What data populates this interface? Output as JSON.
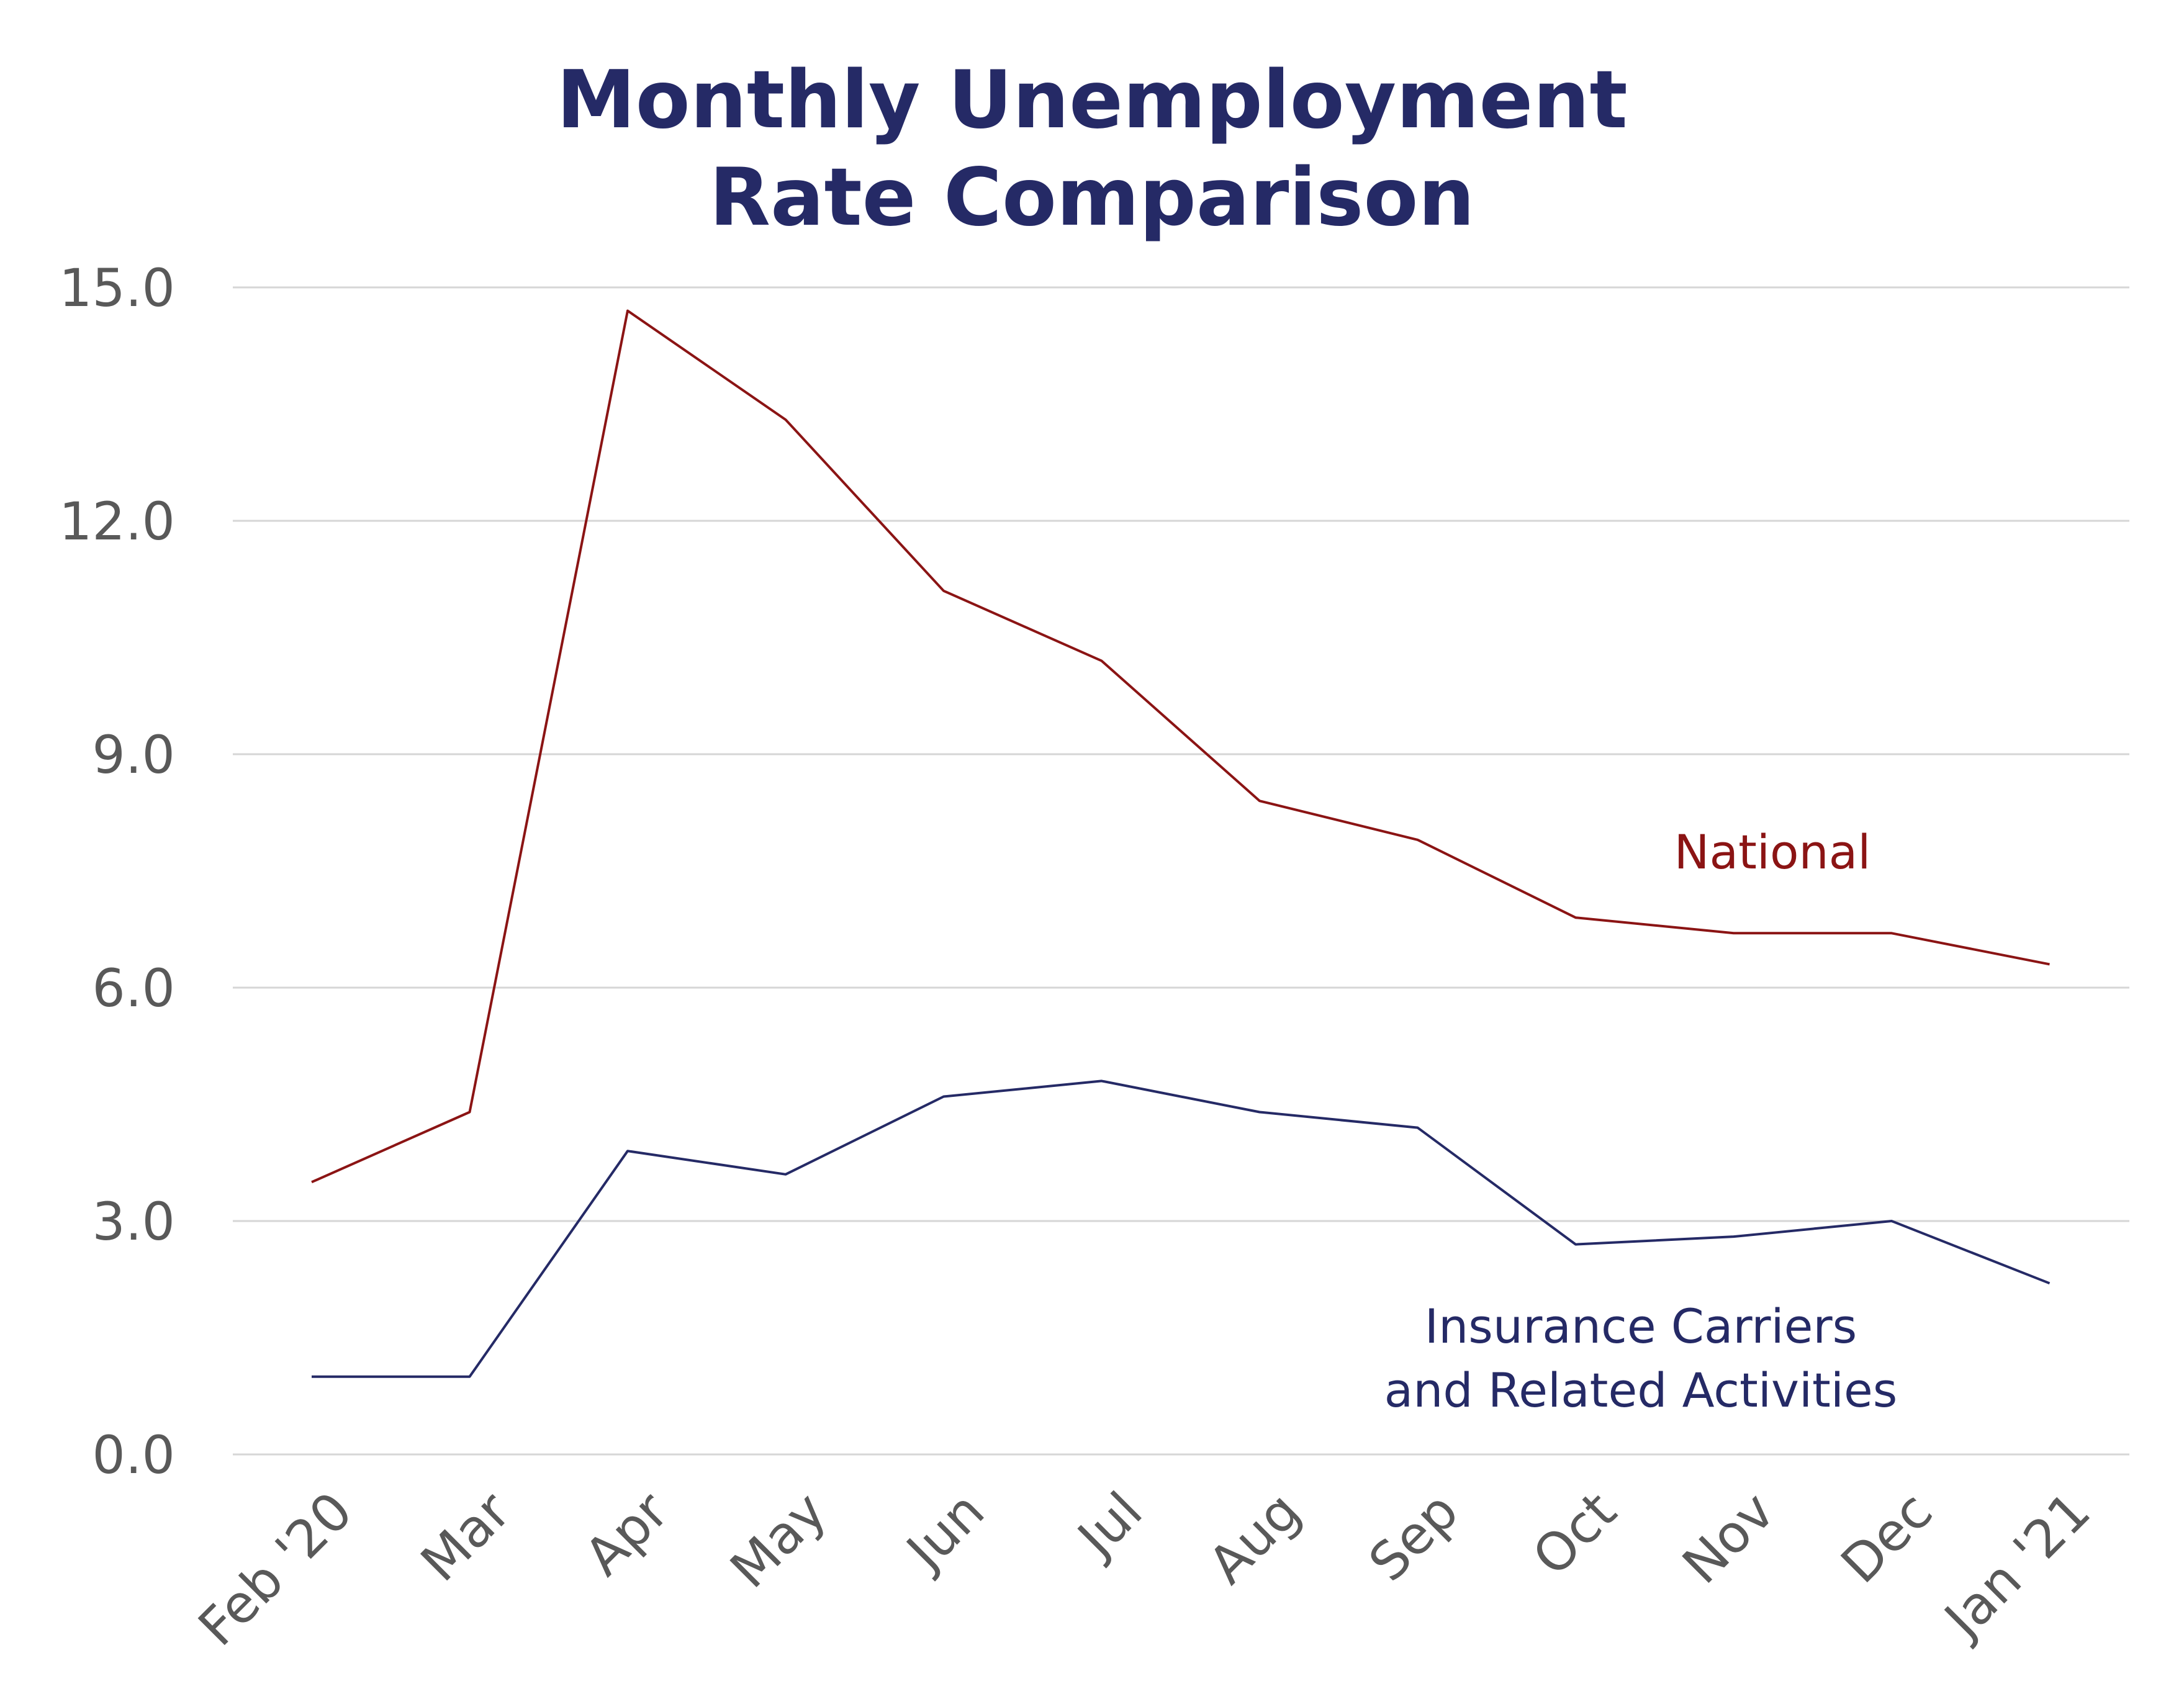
{
  "colors": {
    "title": "#252a66",
    "tick": "#595959",
    "grid": "#d6d6d6",
    "national": "#8b1414",
    "insurance": "#252a66"
  },
  "chart_data": {
    "type": "line",
    "title_lines": [
      "Monthly Unemployment",
      "Rate Comparison"
    ],
    "xlabel": "",
    "ylabel": "",
    "categories": [
      "Feb '20",
      "Mar",
      "Apr",
      "May",
      "Jun",
      "Jul",
      "Aug",
      "Sep",
      "Oct",
      "Nov",
      "Dec",
      "Jan '21"
    ],
    "y_ticks": [
      "0.0",
      "3.0",
      "6.0",
      "9.0",
      "12.0",
      "15.0"
    ],
    "ylim": [
      0,
      15
    ],
    "grid": true,
    "legend": "none",
    "series": [
      {
        "key": "national",
        "label_lines": [
          "National"
        ],
        "values": [
          3.5,
          4.4,
          14.7,
          13.3,
          11.1,
          10.2,
          8.4,
          7.9,
          6.9,
          6.7,
          6.7,
          6.3
        ]
      },
      {
        "key": "insurance",
        "label_lines": [
          "Insurance Carriers",
          "and Related Activities"
        ],
        "values": [
          1.0,
          1.0,
          3.9,
          3.6,
          4.6,
          4.8,
          4.4,
          4.2,
          2.7,
          2.8,
          3.0,
          2.2
        ]
      }
    ]
  }
}
